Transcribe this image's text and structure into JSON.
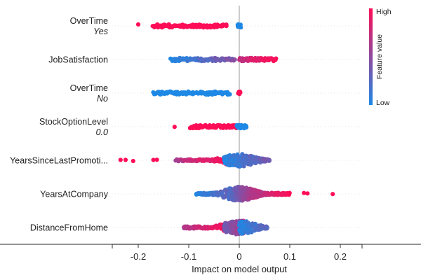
{
  "chart_data": {
    "type": "scatter",
    "title": "",
    "xlabel": "Impact on model output",
    "ylabel": "",
    "xlim": [
      -0.25,
      0.25
    ],
    "xticks": [
      -0.2,
      -0.1,
      0,
      0.1,
      0.2
    ],
    "xtick_labels": [
      "-0.2",
      "-0.1",
      "0",
      "0.1",
      "0.2"
    ],
    "zero_line": true,
    "grid": false,
    "colormap": [
      "#1e88e5",
      "#ff0d57"
    ],
    "colorbar": {
      "title": "Feature value",
      "high_label": "High",
      "low_label": "Low",
      "placement": "top-right"
    },
    "features": [
      {
        "name": "OverTime",
        "value_label": "Yes",
        "spread": "narrow",
        "points": [
          {
            "x": -0.2,
            "v": 1,
            "n": 1
          },
          {
            "x": [
              -0.17,
              -0.025
            ],
            "v": 1,
            "n": 85
          },
          {
            "x": [
              -0.003,
              0.003
            ],
            "v": 0,
            "n": 14
          }
        ]
      },
      {
        "name": "JobSatisfaction",
        "value_label": "",
        "spread": "narrow",
        "points": [
          {
            "x": [
              -0.135,
              -0.01
            ],
            "v": [
              0,
              0.45
            ],
            "n": 85
          },
          {
            "x": [
              0.0,
              0.072
            ],
            "v": [
              0.7,
              1
            ],
            "n": 75
          }
        ]
      },
      {
        "name": "OverTime",
        "value_label": "No",
        "spread": "narrow",
        "points": [
          {
            "x": [
              -0.17,
              -0.02
            ],
            "v": 0,
            "n": 85
          },
          {
            "x": [
              -0.002,
              0.002
            ],
            "v": 1,
            "n": 8
          }
        ]
      },
      {
        "name": "StockOptionLevel",
        "value_label": "0.0",
        "spread": "narrow",
        "points": [
          {
            "x": -0.128,
            "v": 1,
            "n": 1
          },
          {
            "x": [
              -0.098,
              -0.005
            ],
            "v": 1,
            "n": 70
          },
          {
            "x": [
              -0.005,
              0.014
            ],
            "v": 0,
            "n": 35
          }
        ]
      },
      {
        "name": "YearsSinceLastPromoti...",
        "value_label": "",
        "spread": "dense",
        "points": [
          {
            "x": -0.235,
            "v": 1,
            "n": 1
          },
          {
            "x": -0.225,
            "v": 1,
            "n": 1
          },
          {
            "x": -0.21,
            "v": 1,
            "n": 1
          },
          {
            "x": -0.17,
            "v": 1,
            "n": 1
          },
          {
            "x": -0.163,
            "v": 1,
            "n": 1
          },
          {
            "x": [
              -0.125,
              -0.02
            ],
            "v": [
              0.65,
              1
            ],
            "n": 80
          },
          {
            "x": [
              -0.03,
              0.06
            ],
            "v": [
              0,
              0.4
            ],
            "n": 170
          }
        ]
      },
      {
        "name": "YearsAtCompany",
        "value_label": "",
        "spread": "wide",
        "points": [
          {
            "x": [
              -0.085,
              -0.02
            ],
            "v": [
              0,
              0.3
            ],
            "n": 80
          },
          {
            "x": [
              -0.02,
              0.04
            ],
            "v": [
              0.2,
              0.8
            ],
            "n": 250
          },
          {
            "x": [
              0.03,
              0.1
            ],
            "v": [
              0.65,
              1
            ],
            "n": 80
          },
          {
            "x": 0.128,
            "v": 1,
            "n": 1
          },
          {
            "x": 0.135,
            "v": 1,
            "n": 1
          },
          {
            "x": 0.185,
            "v": 1,
            "n": 1
          }
        ]
      },
      {
        "name": "DistanceFromHome",
        "value_label": "",
        "spread": "wide",
        "points": [
          {
            "x": [
              -0.11,
              -0.02
            ],
            "v": [
              0.65,
              1
            ],
            "n": 90
          },
          {
            "x": [
              -0.03,
              0.01
            ],
            "v": [
              0.3,
              0.7
            ],
            "n": 110
          },
          {
            "x": [
              0.0,
              0.055
            ],
            "v": [
              0,
              0.3
            ],
            "n": 110
          }
        ]
      }
    ]
  }
}
